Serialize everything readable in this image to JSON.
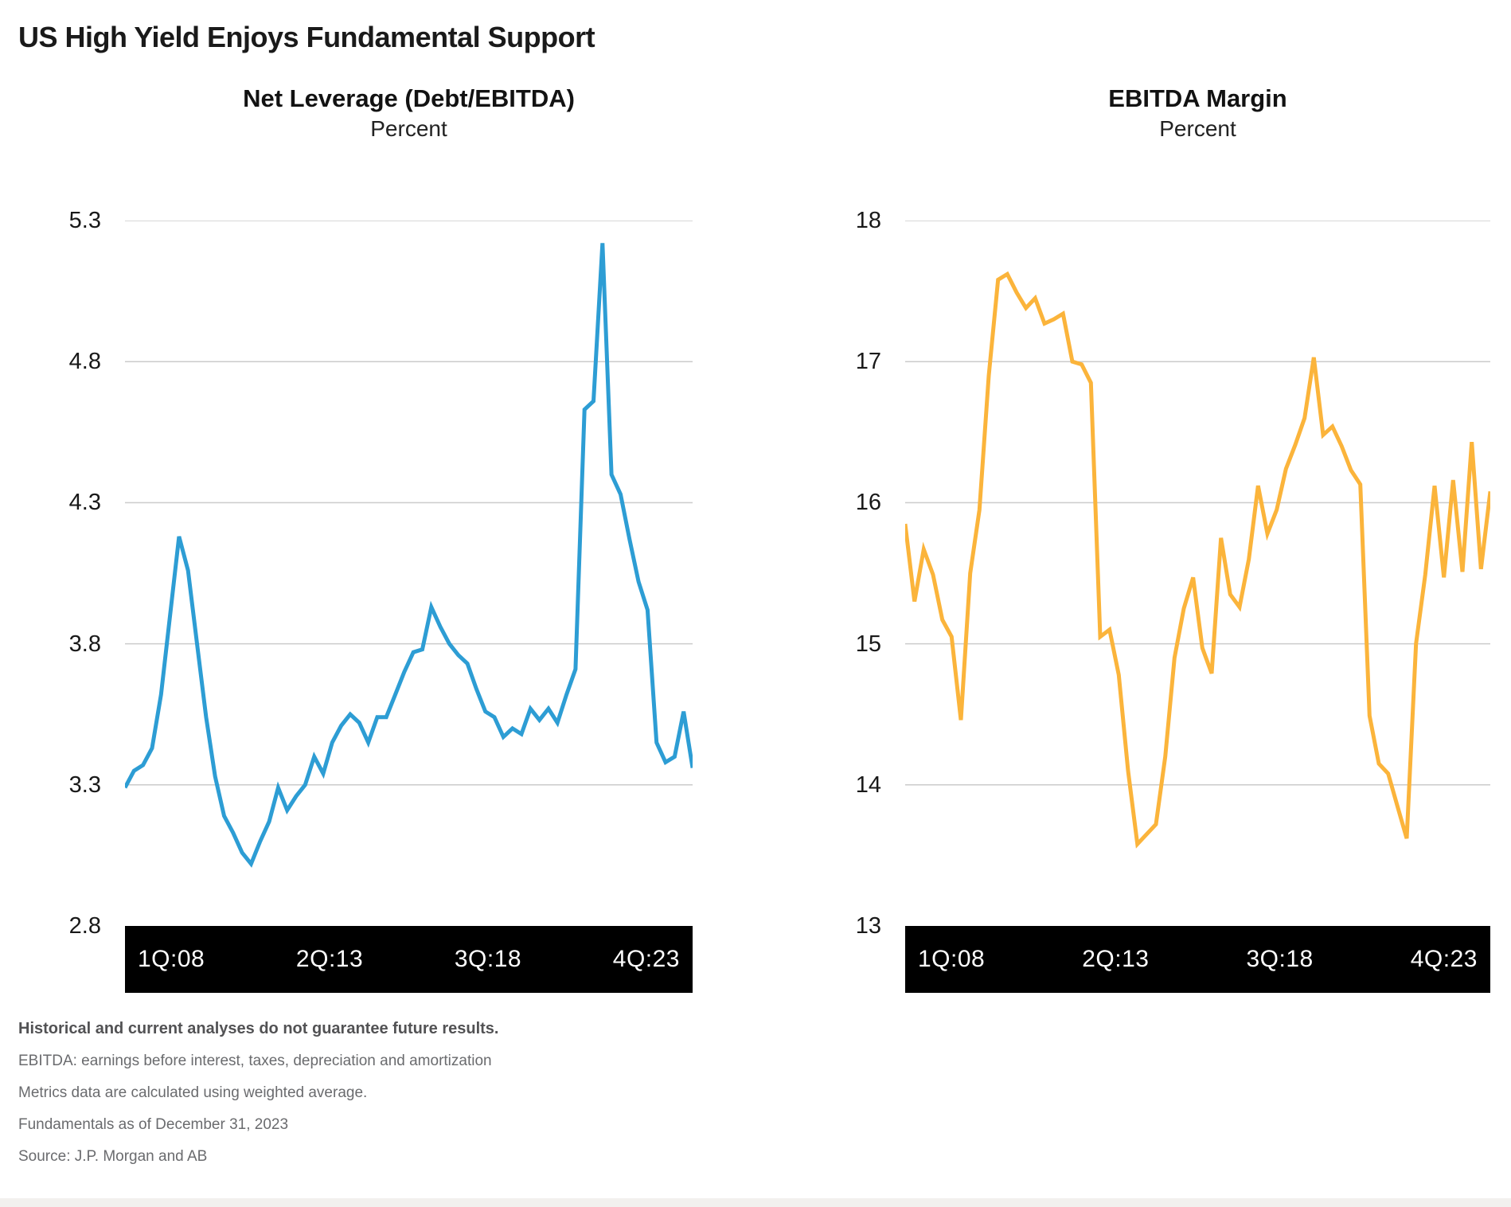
{
  "page": {
    "title": "US High Yield Enjoys Fundamental Support",
    "background": "#ffffff",
    "bottom_strip_color": "#f2f0ee"
  },
  "gridline_color": "#cbcbcb",
  "axis_bar": {
    "background": "#000000",
    "text_color": "#ffffff"
  },
  "chart_data": [
    {
      "type": "line",
      "title": "Net Leverage (Debt/EBITDA)",
      "subtitle": "Percent",
      "color": "#2d9dd4",
      "ylim": [
        2.8,
        5.3
      ],
      "y_ticks": [
        "5.3",
        "4.8",
        "4.3",
        "3.8",
        "3.3",
        "2.8"
      ],
      "x_tick_labels": [
        "1Q:08",
        "2Q:13",
        "3Q:18",
        "4Q:23"
      ],
      "x_description": "Quarterly, 1Q:08 through 4Q:23 (64 points)",
      "grid": true,
      "legend": "none",
      "values": [
        3.29,
        3.35,
        3.37,
        3.43,
        3.62,
        3.9,
        4.18,
        4.06,
        3.8,
        3.54,
        3.33,
        3.19,
        3.13,
        3.06,
        3.02,
        3.1,
        3.17,
        3.29,
        3.21,
        3.26,
        3.3,
        3.4,
        3.34,
        3.45,
        3.51,
        3.55,
        3.52,
        3.45,
        3.54,
        3.54,
        3.62,
        3.7,
        3.77,
        3.78,
        3.93,
        3.86,
        3.8,
        3.76,
        3.73,
        3.64,
        3.56,
        3.54,
        3.47,
        3.5,
        3.48,
        3.57,
        3.53,
        3.57,
        3.52,
        3.62,
        3.71,
        4.63,
        4.66,
        5.22,
        4.4,
        4.33,
        4.17,
        4.02,
        3.92,
        3.45,
        3.38,
        3.4,
        3.56,
        3.36
      ]
    },
    {
      "type": "line",
      "title": "EBITDA Margin",
      "subtitle": "Percent",
      "color": "#fbb43b",
      "ylim": [
        13,
        18
      ],
      "y_ticks": [
        "18",
        "17",
        "16",
        "15",
        "14",
        "13"
      ],
      "x_tick_labels": [
        "1Q:08",
        "2Q:13",
        "3Q:18",
        "4Q:23"
      ],
      "x_description": "Quarterly, 1Q:08 through 4Q:23 (64 points)",
      "grid": true,
      "legend": "none",
      "values": [
        15.85,
        15.3,
        15.67,
        15.49,
        15.17,
        15.05,
        14.46,
        15.5,
        15.95,
        16.9,
        17.58,
        17.62,
        17.49,
        17.38,
        17.45,
        17.27,
        17.3,
        17.34,
        17.0,
        16.98,
        16.85,
        15.05,
        15.1,
        14.78,
        14.1,
        13.58,
        13.65,
        13.72,
        14.2,
        14.9,
        15.25,
        15.47,
        14.97,
        14.79,
        15.75,
        15.35,
        15.26,
        15.6,
        16.12,
        15.78,
        15.95,
        16.24,
        16.41,
        16.6,
        17.03,
        16.48,
        16.54,
        16.4,
        16.23,
        16.13,
        14.49,
        14.15,
        14.08,
        13.85,
        13.62,
        15.0,
        15.49,
        16.12,
        15.47,
        16.16,
        15.51,
        16.43,
        15.53,
        16.08
      ]
    }
  ],
  "footnotes": [
    "Historical and current analyses do not guarantee future results.",
    "EBITDA: earnings before interest, taxes, depreciation and amortization",
    "Metrics data are calculated using weighted average.",
    "Fundamentals as of December 31, 2023",
    "Source: J.P. Morgan and AB"
  ]
}
